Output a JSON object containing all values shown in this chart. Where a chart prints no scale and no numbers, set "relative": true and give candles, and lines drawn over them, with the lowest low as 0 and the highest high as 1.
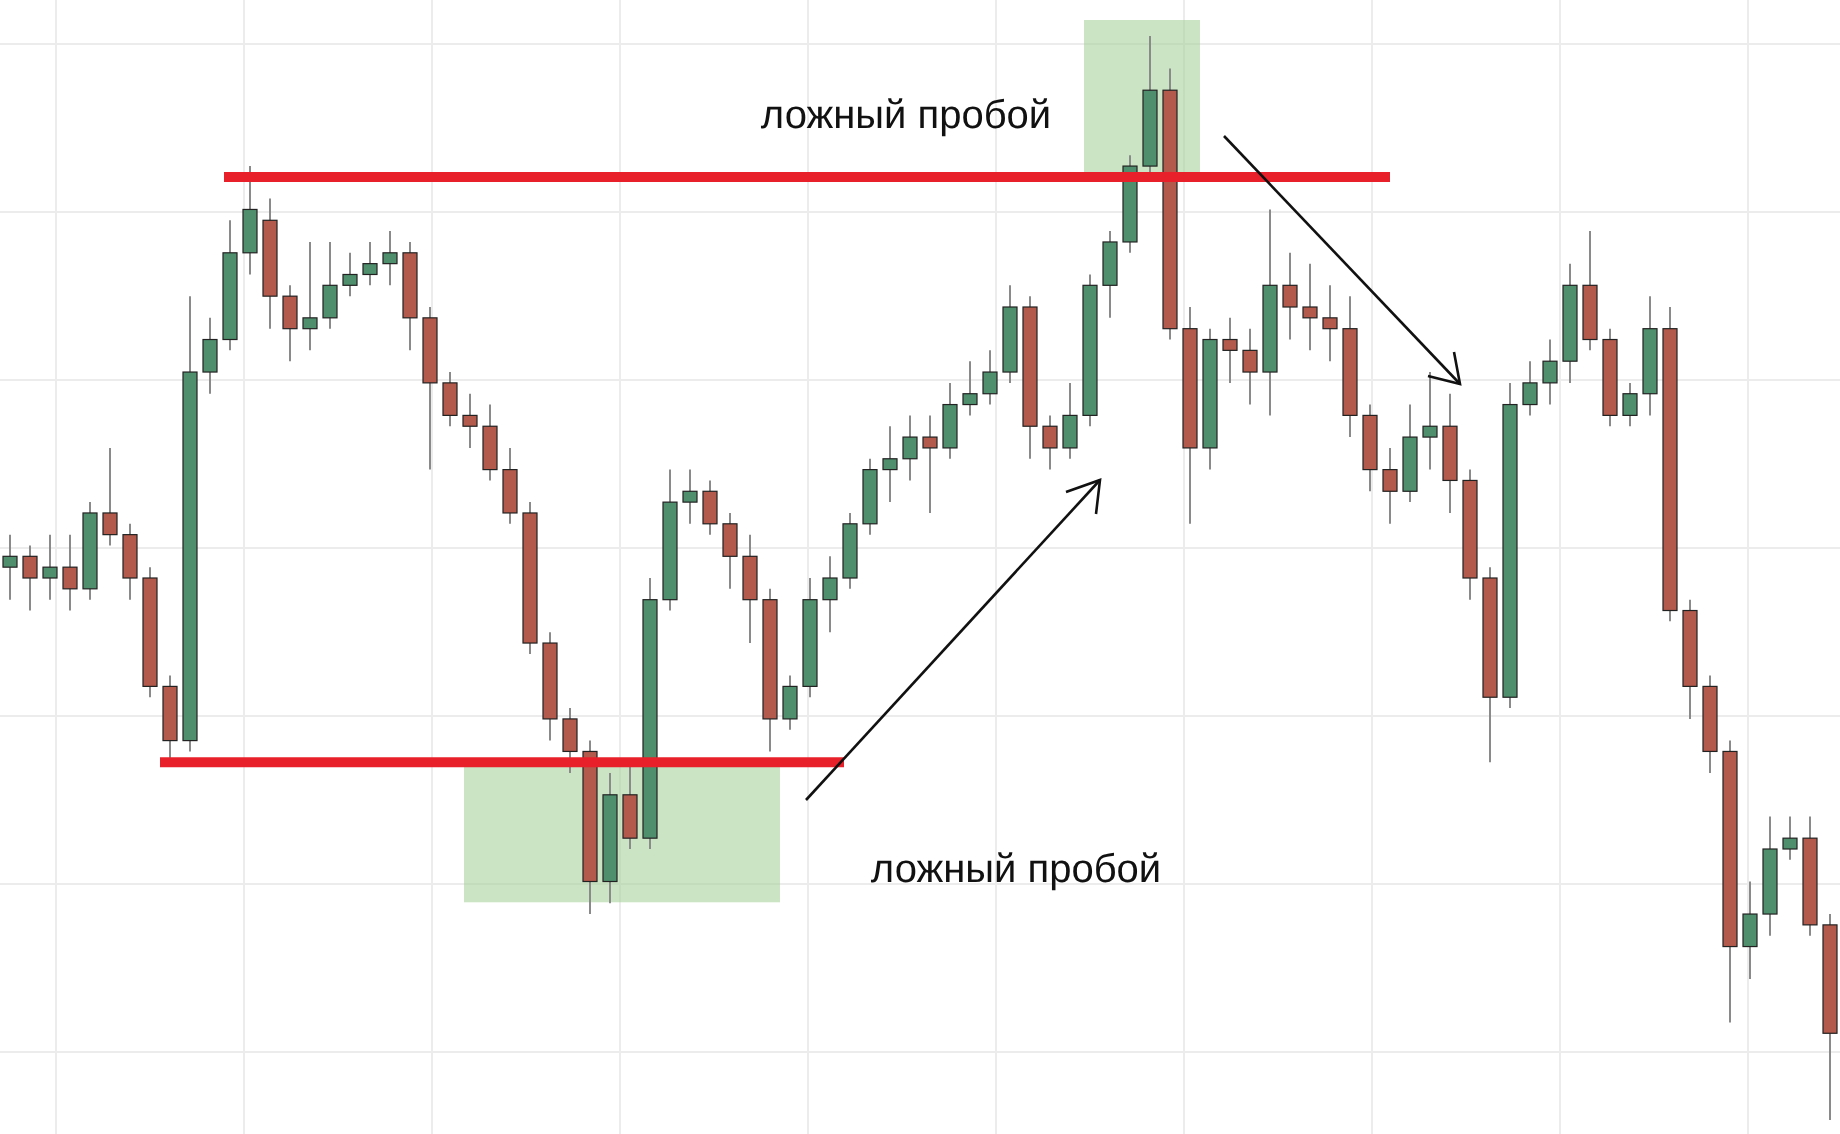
{
  "chart_data": {
    "type": "candlestick",
    "relative": true,
    "grid": true,
    "categories": [
      null,
      null,
      null,
      null,
      null,
      null,
      null,
      null,
      null,
      null,
      null,
      null,
      null,
      null,
      null,
      null,
      null,
      null,
      null,
      null,
      null,
      null,
      null,
      null,
      null,
      null,
      null,
      null,
      null,
      null,
      null,
      null,
      null,
      null,
      null,
      null,
      null,
      null,
      null,
      null,
      null,
      null,
      null,
      null,
      null,
      null,
      null,
      null,
      null,
      null,
      null,
      null,
      null,
      null,
      null,
      null,
      null,
      null,
      null,
      null,
      null,
      null,
      null,
      null,
      null,
      null,
      null,
      null,
      null,
      null,
      null,
      null,
      null,
      null,
      null,
      null,
      null,
      null,
      null,
      null,
      null,
      null,
      null,
      null,
      null,
      null,
      null,
      null,
      null,
      null,
      null,
      null
    ],
    "ohlc": [
      [
        0.51,
        0.54,
        0.48,
        0.52
      ],
      [
        0.52,
        0.53,
        0.47,
        0.5
      ],
      [
        0.5,
        0.54,
        0.48,
        0.51
      ],
      [
        0.51,
        0.54,
        0.47,
        0.49
      ],
      [
        0.49,
        0.57,
        0.48,
        0.56
      ],
      [
        0.56,
        0.62,
        0.53,
        0.54
      ],
      [
        0.54,
        0.55,
        0.48,
        0.5
      ],
      [
        0.5,
        0.51,
        0.39,
        0.4
      ],
      [
        0.4,
        0.41,
        0.33,
        0.35
      ],
      [
        0.35,
        0.76,
        0.34,
        0.69
      ],
      [
        0.69,
        0.74,
        0.67,
        0.72
      ],
      [
        0.72,
        0.83,
        0.71,
        0.8
      ],
      [
        0.8,
        0.88,
        0.78,
        0.84
      ],
      [
        0.83,
        0.85,
        0.73,
        0.76
      ],
      [
        0.76,
        0.77,
        0.7,
        0.73
      ],
      [
        0.73,
        0.81,
        0.71,
        0.74
      ],
      [
        0.74,
        0.81,
        0.73,
        0.77
      ],
      [
        0.77,
        0.8,
        0.76,
        0.78
      ],
      [
        0.78,
        0.81,
        0.77,
        0.79
      ],
      [
        0.79,
        0.82,
        0.77,
        0.8
      ],
      [
        0.8,
        0.81,
        0.71,
        0.74
      ],
      [
        0.74,
        0.75,
        0.6,
        0.68
      ],
      [
        0.68,
        0.69,
        0.64,
        0.65
      ],
      [
        0.65,
        0.67,
        0.62,
        0.64
      ],
      [
        0.64,
        0.66,
        0.59,
        0.6
      ],
      [
        0.6,
        0.62,
        0.55,
        0.56
      ],
      [
        0.56,
        0.57,
        0.43,
        0.44
      ],
      [
        0.44,
        0.45,
        0.35,
        0.37
      ],
      [
        0.37,
        0.38,
        0.32,
        0.34
      ],
      [
        0.34,
        0.35,
        0.19,
        0.22
      ],
      [
        0.22,
        0.32,
        0.2,
        0.3
      ],
      [
        0.3,
        0.33,
        0.25,
        0.26
      ],
      [
        0.26,
        0.5,
        0.25,
        0.48
      ],
      [
        0.48,
        0.6,
        0.47,
        0.57
      ],
      [
        0.57,
        0.6,
        0.55,
        0.58
      ],
      [
        0.58,
        0.59,
        0.54,
        0.55
      ],
      [
        0.55,
        0.56,
        0.49,
        0.52
      ],
      [
        0.52,
        0.54,
        0.44,
        0.48
      ],
      [
        0.48,
        0.49,
        0.34,
        0.37
      ],
      [
        0.37,
        0.41,
        0.36,
        0.4
      ],
      [
        0.4,
        0.5,
        0.39,
        0.48
      ],
      [
        0.48,
        0.52,
        0.45,
        0.5
      ],
      [
        0.5,
        0.56,
        0.49,
        0.55
      ],
      [
        0.55,
        0.61,
        0.54,
        0.6
      ],
      [
        0.6,
        0.64,
        0.57,
        0.61
      ],
      [
        0.61,
        0.65,
        0.59,
        0.63
      ],
      [
        0.63,
        0.65,
        0.56,
        0.62
      ],
      [
        0.62,
        0.68,
        0.61,
        0.66
      ],
      [
        0.66,
        0.7,
        0.65,
        0.67
      ],
      [
        0.67,
        0.71,
        0.66,
        0.69
      ],
      [
        0.69,
        0.77,
        0.68,
        0.75
      ],
      [
        0.75,
        0.76,
        0.61,
        0.64
      ],
      [
        0.64,
        0.65,
        0.6,
        0.62
      ],
      [
        0.62,
        0.68,
        0.61,
        0.65
      ],
      [
        0.65,
        0.78,
        0.64,
        0.77
      ],
      [
        0.77,
        0.82,
        0.74,
        0.81
      ],
      [
        0.81,
        0.89,
        0.8,
        0.88
      ],
      [
        0.88,
        1,
        0.87,
        0.95
      ],
      [
        0.95,
        0.97,
        0.72,
        0.73
      ],
      [
        0.73,
        0.75,
        0.55,
        0.62
      ],
      [
        0.62,
        0.73,
        0.6,
        0.72
      ],
      [
        0.72,
        0.74,
        0.68,
        0.71
      ],
      [
        0.71,
        0.73,
        0.66,
        0.69
      ],
      [
        0.69,
        0.84,
        0.65,
        0.77
      ],
      [
        0.77,
        0.8,
        0.72,
        0.75
      ],
      [
        0.75,
        0.79,
        0.71,
        0.74
      ],
      [
        0.74,
        0.77,
        0.7,
        0.73
      ],
      [
        0.73,
        0.76,
        0.63,
        0.65
      ],
      [
        0.65,
        0.66,
        0.58,
        0.6
      ],
      [
        0.6,
        0.62,
        0.55,
        0.58
      ],
      [
        0.58,
        0.66,
        0.57,
        0.63
      ],
      [
        0.63,
        0.69,
        0.6,
        0.64
      ],
      [
        0.64,
        0.67,
        0.56,
        0.59
      ],
      [
        0.59,
        0.6,
        0.48,
        0.5
      ],
      [
        0.5,
        0.51,
        0.33,
        0.39
      ],
      [
        0.39,
        0.68,
        0.38,
        0.66
      ],
      [
        0.66,
        0.7,
        0.65,
        0.68
      ],
      [
        0.68,
        0.72,
        0.66,
        0.7
      ],
      [
        0.7,
        0.79,
        0.68,
        0.77
      ],
      [
        0.77,
        0.82,
        0.71,
        0.72
      ],
      [
        0.72,
        0.73,
        0.64,
        0.65
      ],
      [
        0.65,
        0.68,
        0.64,
        0.67
      ],
      [
        0.67,
        0.76,
        0.65,
        0.73
      ],
      [
        0.73,
        0.75,
        0.46,
        0.47
      ],
      [
        0.47,
        0.48,
        0.37,
        0.4
      ],
      [
        0.4,
        0.41,
        0.32,
        0.34
      ],
      [
        0.34,
        0.35,
        0.09,
        0.16
      ],
      [
        0.16,
        0.22,
        0.13,
        0.19
      ],
      [
        0.19,
        0.28,
        0.17,
        0.25
      ],
      [
        0.25,
        0.28,
        0.24,
        0.26
      ],
      [
        0.26,
        0.28,
        0.17,
        0.18
      ],
      [
        0.18,
        0.19,
        0,
        0.08
      ]
    ],
    "colors": [
      "#4f8f6d",
      "#b35a4c",
      "#4f8f6d",
      "#b35a4c",
      "#4f8f6d",
      "#b35a4c",
      "#b35a4c",
      "#b35a4c",
      "#b35a4c",
      "#4f8f6d",
      "#4f8f6d",
      "#4f8f6d",
      "#4f8f6d",
      "#b35a4c",
      "#b35a4c",
      "#4f8f6d",
      "#4f8f6d",
      "#4f8f6d",
      "#4f8f6d",
      "#4f8f6d",
      "#b35a4c",
      "#b35a4c",
      "#b35a4c",
      "#b35a4c",
      "#b35a4c",
      "#b35a4c",
      "#b35a4c",
      "#b35a4c",
      "#b35a4c",
      "#b35a4c",
      "#4f8f6d",
      "#b35a4c",
      "#4f8f6d",
      "#4f8f6d",
      "#4f8f6d",
      "#b35a4c",
      "#b35a4c",
      "#b35a4c",
      "#b35a4c",
      "#4f8f6d",
      "#4f8f6d",
      "#4f8f6d",
      "#4f8f6d",
      "#4f8f6d",
      "#4f8f6d",
      "#4f8f6d",
      "#b35a4c",
      "#4f8f6d",
      "#4f8f6d",
      "#4f8f6d",
      "#4f8f6d",
      "#b35a4c",
      "#b35a4c",
      "#4f8f6d",
      "#4f8f6d",
      "#4f8f6d",
      "#4f8f6d",
      "#4f8f6d",
      "#b35a4c",
      "#b35a4c",
      "#4f8f6d",
      "#b35a4c",
      "#b35a4c",
      "#4f8f6d",
      "#b35a4c",
      "#b35a4c",
      "#b35a4c",
      "#b35a4c",
      "#b35a4c",
      "#b35a4c",
      "#4f8f6d",
      "#4f8f6d",
      "#b35a4c",
      "#b35a4c",
      "#b35a4c",
      "#4f8f6d",
      "#4f8f6d",
      "#4f8f6d",
      "#4f8f6d",
      "#b35a4c",
      "#b35a4c",
      "#4f8f6d",
      "#4f8f6d",
      "#b35a4c",
      "#b35a4c",
      "#b35a4c",
      "#b35a4c",
      "#4f8f6d",
      "#4f8f6d",
      "#4f8f6d",
      "#b35a4c",
      "#b35a4c"
    ],
    "ref_lines": [
      {
        "axis": "y",
        "value": 0.87,
        "color": "#e8202a"
      },
      {
        "axis": "y",
        "value": 0.33,
        "color": "#e8202a"
      }
    ],
    "annotations": [
      "ложный пробой",
      "ложный пробой"
    ]
  }
}
